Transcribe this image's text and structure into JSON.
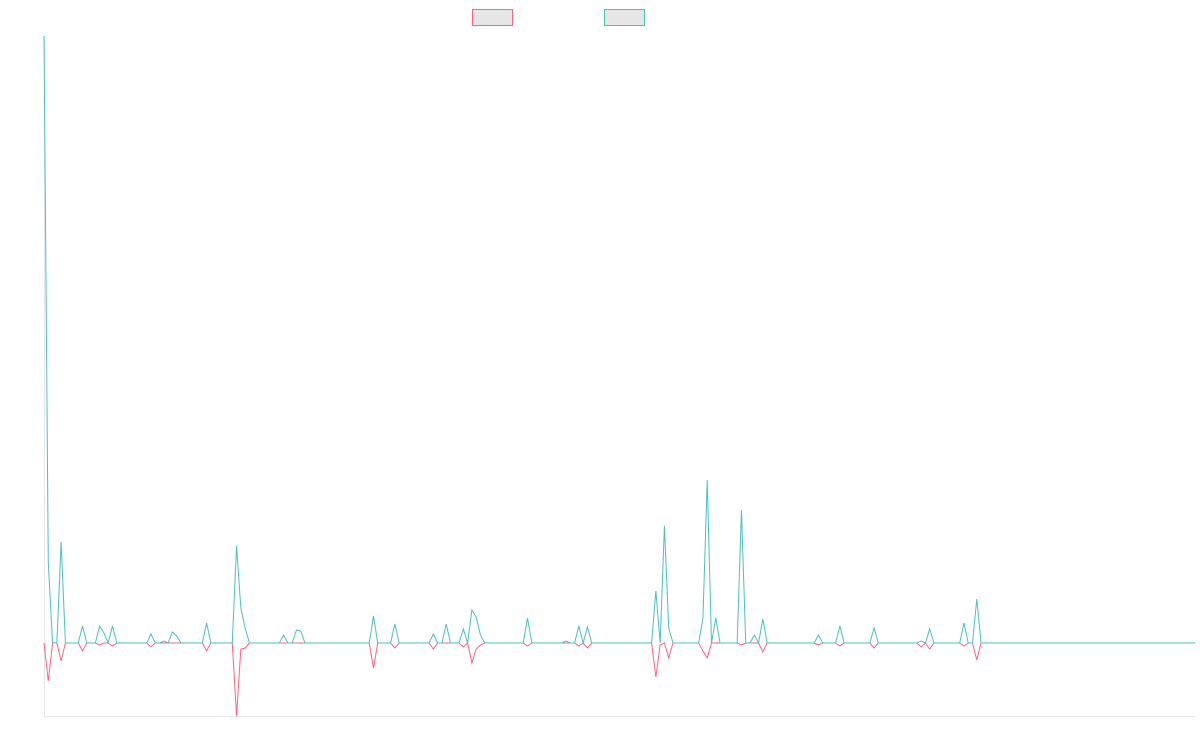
{
  "chart_data": {
    "type": "line",
    "ylim": [
      -73,
      607
    ],
    "series": [
      {
        "color": "#ff6384",
        "values": [
          0,
          -38,
          0,
          0,
          -18,
          0,
          0,
          0,
          0,
          -8,
          0,
          0,
          0,
          -2,
          0,
          0,
          -3,
          0,
          0,
          0,
          0,
          0,
          0,
          0,
          0,
          -4,
          0,
          0,
          0,
          0,
          0,
          0,
          0,
          0,
          0,
          0,
          0,
          0,
          -8,
          0,
          0,
          0,
          0,
          0,
          0,
          -73,
          -6,
          -5,
          0,
          0,
          0,
          0,
          0,
          0,
          0,
          0,
          0,
          0,
          0,
          0,
          0,
          0,
          0,
          0,
          0,
          0,
          0,
          0,
          0,
          0,
          0,
          0,
          0,
          0,
          0,
          0,
          0,
          -25,
          0,
          0,
          0,
          0,
          -5,
          0,
          0,
          0,
          0,
          0,
          0,
          0,
          0,
          -6,
          0,
          0,
          0,
          0,
          0,
          0,
          -4,
          0,
          -20,
          -6,
          -2,
          0,
          0,
          0,
          0,
          0,
          0,
          0,
          0,
          0,
          0,
          -3,
          0,
          0,
          0,
          0,
          0,
          0,
          0,
          0,
          0,
          0,
          0,
          -3,
          0,
          -5,
          0,
          0,
          0,
          0,
          0,
          0,
          0,
          0,
          0,
          0,
          0,
          0,
          0,
          0,
          0,
          -34,
          -2,
          0,
          -15,
          0,
          0,
          0,
          0,
          0,
          0,
          0,
          -8,
          -15,
          0,
          0,
          0,
          0,
          0,
          0,
          0,
          -2,
          0,
          0,
          0,
          0,
          -9,
          0,
          0,
          0,
          0,
          0,
          0,
          0,
          0,
          0,
          0,
          0,
          0,
          -2,
          0,
          0,
          0,
          0,
          -3,
          0,
          0,
          0,
          0,
          0,
          0,
          0,
          -5,
          0,
          0,
          0,
          0,
          0,
          0,
          0,
          0,
          0,
          0,
          -4,
          0,
          -6,
          0,
          0,
          0,
          0,
          0,
          0,
          0,
          -3,
          0,
          0,
          -17,
          0,
          0,
          0,
          0,
          0,
          0,
          0,
          0,
          0,
          0,
          0,
          0,
          0,
          0,
          0,
          0,
          0,
          0,
          0,
          0,
          0,
          0,
          0,
          0,
          0,
          0,
          0,
          0,
          0,
          0,
          0,
          0,
          0,
          0,
          0,
          0,
          0,
          0,
          0,
          0,
          0,
          0,
          0,
          0,
          0,
          0,
          0,
          0,
          0,
          0,
          0
        ]
      },
      {
        "color": "#4bc0c0",
        "values": [
          607,
          80,
          0,
          0,
          101,
          0,
          0,
          0,
          0,
          17,
          0,
          0,
          0,
          17,
          10,
          0,
          17,
          0,
          0,
          0,
          0,
          0,
          0,
          0,
          0,
          9,
          0,
          0,
          2,
          0,
          11,
          7,
          0,
          0,
          0,
          0,
          0,
          0,
          20,
          0,
          0,
          0,
          0,
          0,
          0,
          97,
          35,
          15,
          0,
          0,
          0,
          0,
          0,
          0,
          0,
          0,
          8,
          0,
          0,
          13,
          12,
          0,
          0,
          0,
          0,
          0,
          0,
          0,
          0,
          0,
          0,
          0,
          0,
          0,
          0,
          0,
          0,
          27,
          0,
          0,
          0,
          0,
          19,
          0,
          0,
          0,
          0,
          0,
          0,
          0,
          0,
          9,
          0,
          0,
          19,
          0,
          0,
          0,
          14,
          0,
          33,
          26,
          8,
          0,
          0,
          0,
          0,
          0,
          0,
          0,
          0,
          0,
          0,
          25,
          0,
          0,
          0,
          0,
          0,
          0,
          0,
          0,
          2,
          0,
          0,
          17,
          0,
          16,
          0,
          0,
          0,
          0,
          0,
          0,
          0,
          0,
          0,
          0,
          0,
          0,
          0,
          0,
          0,
          52,
          0,
          117,
          15,
          0,
          0,
          0,
          0,
          0,
          0,
          0,
          25,
          163,
          0,
          25,
          0,
          0,
          0,
          0,
          0,
          133,
          0,
          0,
          8,
          0,
          24,
          0,
          0,
          0,
          0,
          0,
          0,
          0,
          0,
          0,
          0,
          0,
          0,
          8,
          0,
          0,
          0,
          0,
          17,
          0,
          0,
          0,
          0,
          0,
          0,
          0,
          15,
          0,
          0,
          0,
          0,
          0,
          0,
          0,
          0,
          0,
          0,
          2,
          0,
          14,
          0,
          0,
          0,
          0,
          0,
          0,
          0,
          20,
          0,
          0,
          44,
          0,
          0,
          0,
          0,
          0,
          0,
          0,
          0,
          0,
          0,
          0,
          0,
          0,
          0,
          0,
          0,
          0,
          0,
          0,
          0,
          0,
          0,
          0,
          0,
          0,
          0,
          0,
          0,
          0,
          0,
          0,
          0,
          0,
          0,
          0,
          0,
          0,
          0,
          0,
          0,
          0,
          0,
          0,
          0,
          0,
          0,
          0,
          0,
          0,
          0,
          0
        ]
      }
    ]
  }
}
